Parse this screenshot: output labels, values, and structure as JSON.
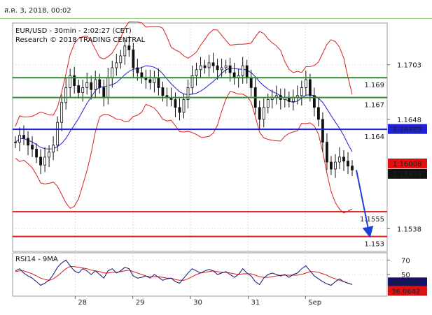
{
  "header": {
    "date_text": "ส.ค. 3, 2018, 00:02"
  },
  "chart_data": {
    "type": "candlestick",
    "title": "EUR/USD - 30min - 2:02:27 (CET)",
    "subtitle": "Research © 2018 TRADING CENTRAL",
    "ylim": [
      1.1515,
      1.1745
    ],
    "y_ticks": [
      1.1703,
      1.1648,
      1.1538
    ],
    "x_ticks": [
      "28",
      "29",
      "30",
      "31",
      "Sep"
    ],
    "levels": [
      {
        "value": 1.169,
        "label": "1.169",
        "color": "#2e8b2e"
      },
      {
        "value": 1.167,
        "label": "1.167",
        "color": "#2e8b2e"
      },
      {
        "value": 1.1638,
        "label": "1.164",
        "color": "#1f1fd6"
      },
      {
        "value": 1.1555,
        "label": "1.1555",
        "color": "#d61f1f"
      },
      {
        "value": 1.153,
        "label": "1.153",
        "color": "#d61f1f"
      }
    ],
    "price_tags": [
      {
        "value": 1.16383,
        "label": "1.16383",
        "color": "#1f1fd6"
      },
      {
        "value": 1.16008,
        "label": "1.16008",
        "color": "#e01010"
      },
      {
        "value": 1.15974,
        "label": "1.15974",
        "color": "#111111"
      }
    ],
    "close_series": [
      1.1625,
      1.1632,
      1.1629,
      1.1622,
      1.1618,
      1.161,
      1.1602,
      1.161,
      1.1615,
      1.1622,
      1.1645,
      1.1665,
      1.168,
      1.1692,
      1.1682,
      1.1675,
      1.168,
      1.1685,
      1.1678,
      1.1688,
      1.168,
      1.167,
      1.169,
      1.17,
      1.1705,
      1.1712,
      1.1722,
      1.1718,
      1.17,
      1.1695,
      1.169,
      1.1688,
      1.1685,
      1.169,
      1.168,
      1.1672,
      1.167,
      1.1668,
      1.166,
      1.1655,
      1.1668,
      1.168,
      1.1692,
      1.1698,
      1.1702,
      1.17,
      1.1705,
      1.1702,
      1.1698,
      1.17,
      1.1702,
      1.1695,
      1.169,
      1.1692,
      1.1702,
      1.169,
      1.168,
      1.166,
      1.1648,
      1.166,
      1.1668,
      1.167,
      1.1672,
      1.1668,
      1.167,
      1.1666,
      1.167,
      1.1672,
      1.168,
      1.1688,
      1.1672,
      1.166,
      1.1648,
      1.1625,
      1.1605,
      1.1598,
      1.1605,
      1.161,
      1.1606,
      1.1601,
      1.1597
    ],
    "forecast_target": 1.153,
    "rsi": {
      "label": "RSI14 - 9MA",
      "ylim": [
        20,
        80
      ],
      "ticks": [
        70,
        50
      ],
      "rsi_tag": {
        "value": 36.1755,
        "label": "36.1755",
        "color": "#13136b"
      },
      "ma_tag": {
        "value": 36.0642,
        "label": "36.0642",
        "color": "#e01010"
      },
      "rsi_series": [
        55,
        58,
        52,
        48,
        45,
        40,
        35,
        38,
        42,
        50,
        60,
        66,
        70,
        62,
        55,
        52,
        58,
        55,
        50,
        55,
        50,
        45,
        55,
        58,
        52,
        55,
        60,
        58,
        48,
        45,
        46,
        48,
        45,
        50,
        46,
        42,
        44,
        45,
        40,
        38,
        45,
        52,
        58,
        55,
        52,
        55,
        57,
        55,
        50,
        52,
        54,
        50,
        46,
        50,
        58,
        52,
        48,
        40,
        36,
        45,
        50,
        52,
        50,
        48,
        50,
        46,
        50,
        52,
        58,
        62,
        55,
        48,
        44,
        40,
        37,
        35,
        40,
        44,
        40,
        38,
        36.2
      ],
      "ma_series": [
        54,
        55,
        55,
        53,
        51,
        48,
        45,
        43,
        42,
        44,
        48,
        53,
        58,
        61,
        61,
        60,
        59,
        58,
        56,
        55,
        54,
        52,
        52,
        53,
        53,
        54,
        55,
        56,
        54,
        52,
        50,
        48,
        47,
        47,
        47,
        46,
        45,
        45,
        43,
        42,
        42,
        44,
        47,
        50,
        52,
        53,
        54,
        55,
        54,
        53,
        53,
        52,
        51,
        50,
        51,
        51,
        51,
        49,
        47,
        46,
        46,
        47,
        48,
        49,
        49,
        49,
        49,
        49,
        50,
        52,
        54,
        54,
        53,
        51,
        49,
        46,
        44,
        42,
        40,
        38,
        36.1
      ]
    }
  }
}
